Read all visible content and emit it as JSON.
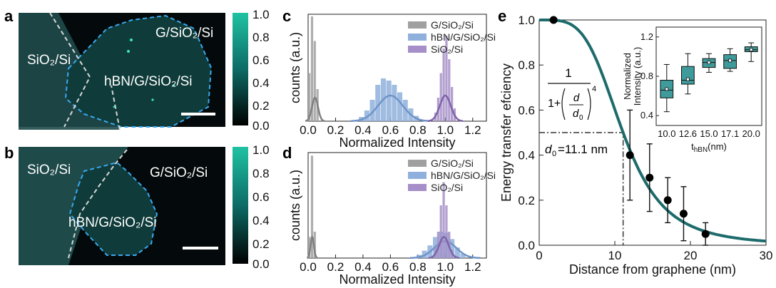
{
  "panels": {
    "a": {
      "label": "a",
      "region_labels": [
        "SiO₂/Si",
        "G/SiO₂/Si",
        "hBN/G/SiO₂/Si"
      ],
      "colorbar_ticks": [
        "1.0",
        "0.8",
        "0.6",
        "0.4",
        "0.2",
        "0.0"
      ]
    },
    "b": {
      "label": "b",
      "region_labels": [
        "SiO₂/Si",
        "G/SiO₂/Si",
        "hBN/G/SiO₂/Si"
      ],
      "colorbar_ticks": [
        "1.0",
        "0.8",
        "0.6",
        "0.4",
        "0.2",
        "0.0"
      ]
    },
    "e": {
      "label": "e",
      "formula": {
        "numerator": "1",
        "denominator_prefix": "1+",
        "d": "d",
        "d0": "d",
        "d0_sub": "0",
        "exponent": "4"
      },
      "d0_annotation": {
        "prefix": "d",
        "sub": "0",
        "suffix": "=11.1 nm"
      }
    }
  },
  "chart_data": [
    {
      "panel": "c",
      "type": "bar",
      "xlabel": "Normalized Intensity",
      "ylabel": "counts (a.u.)",
      "xlim": [
        0,
        1.3
      ],
      "xticks": [
        "0.0",
        "0.2",
        "0.4",
        "0.6",
        "0.8",
        "1.0",
        "1.2"
      ],
      "legend_position": "top-right",
      "series": [
        {
          "name": "G/SiO₂/Si",
          "color": "#a0a0a0",
          "fit_color": "#7f7f7f",
          "bins": [
            0.01,
            0.03,
            0.05,
            0.07
          ],
          "heights": [
            0.45,
            0.98,
            0.75,
            0.3
          ],
          "fit": {
            "mu": 0.05,
            "sigma": 0.022,
            "amp": 0.22
          }
        },
        {
          "name": "hBN/G/SiO₂/Si",
          "color": "#8fb0dc",
          "fit_color": "#6f93c9",
          "bins": [
            0.39,
            0.43,
            0.47,
            0.51,
            0.55,
            0.59,
            0.63,
            0.67,
            0.71,
            0.75,
            0.79
          ],
          "heights": [
            0.04,
            0.1,
            0.2,
            0.34,
            0.4,
            0.38,
            0.34,
            0.27,
            0.2,
            0.12,
            0.05
          ],
          "fit": {
            "mu": 0.6,
            "sigma": 0.09,
            "amp": 0.24
          }
        },
        {
          "name": "SiO₂/Si",
          "color": "#a68fc8",
          "fit_color": "#7e64a8",
          "bins": [
            0.93,
            0.95,
            0.97,
            0.99,
            1.01,
            1.03,
            1.05,
            1.07
          ],
          "heights": [
            0.08,
            0.22,
            0.45,
            0.68,
            0.8,
            0.58,
            0.32,
            0.12
          ],
          "fit": {
            "mu": 1.0,
            "sigma": 0.04,
            "amp": 0.24
          }
        }
      ]
    },
    {
      "panel": "d",
      "type": "bar",
      "xlabel": "Normalized Intensity",
      "ylabel": "counts (a.u.)",
      "xlim": [
        0,
        1.3
      ],
      "xticks": [
        "0.0",
        "0.2",
        "0.4",
        "0.6",
        "0.8",
        "1.0",
        "1.2"
      ],
      "legend_position": "top-right",
      "series": [
        {
          "name": "G/SiO₂/Si",
          "color": "#a0a0a0",
          "fit_color": "#7f7f7f",
          "bins": [
            0.01,
            0.03,
            0.05
          ],
          "heights": [
            0.2,
            0.97,
            0.25
          ],
          "fit": {
            "mu": 0.03,
            "sigma": 0.012,
            "amp": 0.2
          }
        },
        {
          "name": "hBN/G/SiO₂/Si",
          "color": "#8fb0dc",
          "fit_color": "#6f93c9",
          "bins": [
            0.81,
            0.85,
            0.89,
            0.93,
            0.97,
            1.01,
            1.05,
            1.09,
            1.13
          ],
          "heights": [
            0.03,
            0.07,
            0.12,
            0.2,
            0.25,
            0.24,
            0.18,
            0.1,
            0.04
          ],
          "fit": {
            "mu": 1.0,
            "sigma": 0.08,
            "amp": 0.16
          }
        },
        {
          "name": "SiO₂/Si",
          "color": "#a68fc8",
          "fit_color": "#7e64a8",
          "bins": [
            0.93,
            0.95,
            0.97,
            0.99,
            1.01,
            1.03,
            1.05
          ],
          "heights": [
            0.1,
            0.25,
            0.5,
            0.72,
            0.5,
            0.25,
            0.08
          ],
          "fit": {
            "mu": 0.99,
            "sigma": 0.035,
            "amp": 0.2
          }
        }
      ]
    },
    {
      "panel": "e",
      "type": "scatter",
      "xlabel": "Distance from graphene (nm)",
      "ylabel": "Energy transfer efciency",
      "xlim": [
        0,
        30
      ],
      "ylim": [
        0,
        1.0
      ],
      "xticks": [
        "0",
        "10",
        "20",
        "30"
      ],
      "yticks": [
        "0.0",
        "0.2",
        "0.4",
        "0.6",
        "0.8",
        "1.0"
      ],
      "curve_color": "#1e6b6b",
      "d0": 11.1,
      "d0_y": 0.5,
      "points": [
        {
          "x": 1.9,
          "y": 1.0,
          "err": 0
        },
        {
          "x": 12.0,
          "y": 0.4,
          "err": 0.2
        },
        {
          "x": 14.6,
          "y": 0.3,
          "err": 0.15
        },
        {
          "x": 17.0,
          "y": 0.2,
          "err": 0.1
        },
        {
          "x": 19.1,
          "y": 0.14,
          "err": 0.12
        },
        {
          "x": 22.0,
          "y": 0.05,
          "err": 0.05
        }
      ]
    },
    {
      "panel": "e-inset",
      "type": "box",
      "xlabel": "t",
      "xlabel_sub": "hBN",
      "xlabel_suffix": "(nm)",
      "ylabel": "Normalized Intensity (a.u.)",
      "ylim": [
        0.3,
        1.3
      ],
      "yticks": [
        "1.2",
        "0.8",
        "0.4"
      ],
      "box_color": "#3f9b9b",
      "categories": [
        "10.0",
        "12.6",
        "15.0",
        "17.1",
        "20.0"
      ],
      "boxes": [
        {
          "min": 0.44,
          "q1": 0.58,
          "median": 0.66,
          "mean": 0.67,
          "q3": 0.76,
          "max": 0.92
        },
        {
          "min": 0.62,
          "q1": 0.72,
          "median": 0.76,
          "mean": 0.77,
          "q3": 0.9,
          "max": 1.03
        },
        {
          "min": 0.84,
          "q1": 0.89,
          "median": 0.94,
          "mean": 0.94,
          "q3": 0.98,
          "max": 1.03
        },
        {
          "min": 0.85,
          "q1": 0.88,
          "median": 0.96,
          "mean": 0.96,
          "q3": 1.02,
          "max": 1.08
        },
        {
          "min": 0.95,
          "q1": 1.05,
          "median": 1.07,
          "mean": 1.07,
          "q3": 1.1,
          "max": 1.14
        }
      ]
    }
  ]
}
